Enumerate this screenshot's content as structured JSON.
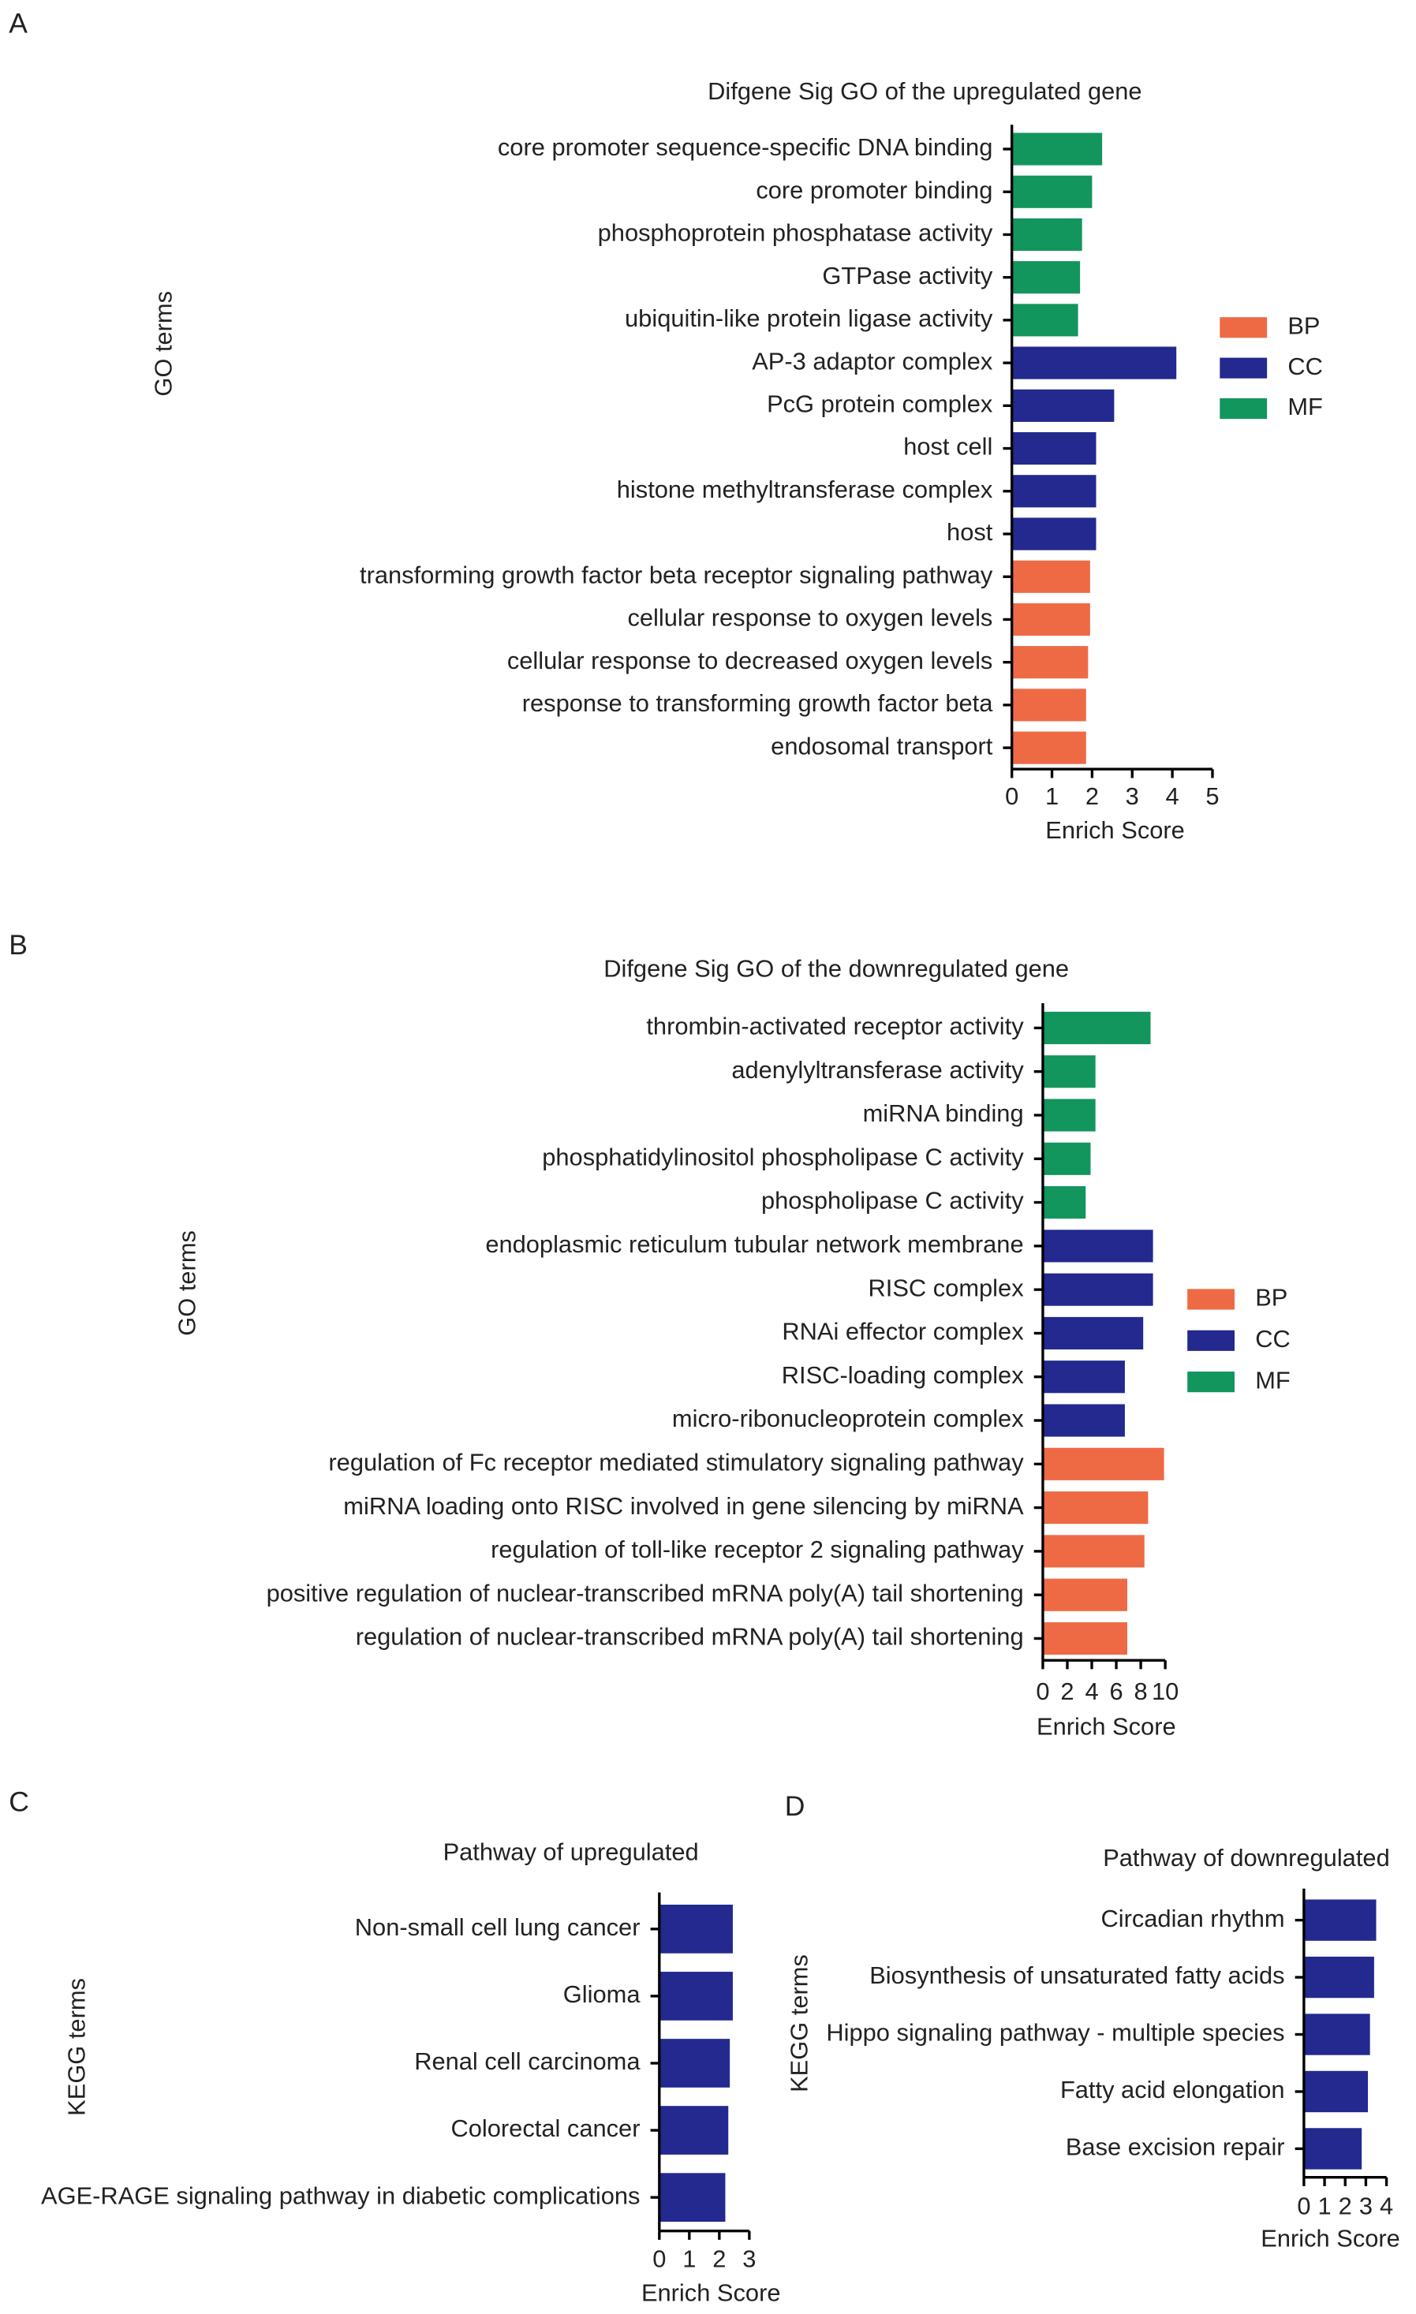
{
  "chart_data": [
    {
      "type": "barh",
      "panel": "A",
      "title": "Difgene Sig GO of the upregulated gene",
      "xlabel": "Enrich Score",
      "ylabel": "GO terms",
      "categories": [
        "core promoter sequence-specific DNA binding",
        "core promoter binding",
        "phosphoprotein phosphatase activity",
        "GTPase activity",
        "ubiquitin-like protein ligase activity",
        "AP-3 adaptor complex",
        "PcG protein complex",
        "host cell",
        "histone methyltransferase complex",
        "host",
        "transforming growth factor beta receptor signaling pathway",
        "cellular response to oxygen levels",
        "cellular response to decreased oxygen levels",
        "response to transforming growth factor beta",
        "endosomal transport"
      ],
      "series": [
        {
          "name": "BP",
          "color": "#ee6a45",
          "values": [
            null,
            null,
            null,
            null,
            null,
            null,
            null,
            null,
            null,
            null,
            1.95,
            1.95,
            1.9,
            1.85,
            1.85
          ]
        },
        {
          "name": "CC",
          "color": "#23298e",
          "values": [
            null,
            null,
            null,
            null,
            null,
            4.1,
            2.55,
            2.1,
            2.1,
            2.1,
            null,
            null,
            null,
            null,
            null
          ]
        },
        {
          "name": "MF",
          "color": "#13955e",
          "values": [
            2.25,
            2.0,
            1.75,
            1.7,
            1.65,
            null,
            null,
            null,
            null,
            null,
            null,
            null,
            null,
            null,
            null
          ]
        }
      ],
      "xlim": [
        0,
        5
      ],
      "xticks": [
        0,
        1,
        2,
        3,
        4,
        5
      ],
      "legend": "right"
    },
    {
      "type": "barh",
      "panel": "B",
      "title": "Difgene Sig GO of the downregulated gene",
      "xlabel": "Enrich Score",
      "ylabel": "GO terms",
      "categories": [
        "thrombin-activated receptor activity",
        "adenylyltransferase activity",
        "miRNA binding",
        "phosphatidylinositol phospholipase C activity",
        "phospholipase C activity",
        "endoplasmic reticulum tubular network membrane",
        "RISC complex",
        "RNAi effector complex",
        "RISC-loading complex",
        "micro-ribonucleoprotein complex",
        "regulation of Fc receptor mediated stimulatory signaling pathway",
        "miRNA loading onto RISC involved in gene silencing by miRNA",
        "regulation of toll-like receptor 2 signaling pathway",
        "positive regulation of nuclear-transcribed mRNA poly(A) tail shortening",
        "regulation of nuclear-transcribed mRNA poly(A) tail shortening"
      ],
      "series": [
        {
          "name": "BP",
          "color": "#ee6a45",
          "values": [
            null,
            null,
            null,
            null,
            null,
            null,
            null,
            null,
            null,
            null,
            9.9,
            8.6,
            8.3,
            6.9,
            6.9
          ]
        },
        {
          "name": "CC",
          "color": "#23298e",
          "values": [
            null,
            null,
            null,
            null,
            null,
            9.0,
            9.0,
            8.2,
            6.7,
            6.7,
            null,
            null,
            null,
            null,
            null
          ]
        },
        {
          "name": "MF",
          "color": "#13955e",
          "values": [
            8.8,
            4.3,
            4.3,
            3.9,
            3.5,
            null,
            null,
            null,
            null,
            null,
            null,
            null,
            null,
            null,
            null
          ]
        }
      ],
      "xlim": [
        0,
        10
      ],
      "xticks": [
        0,
        2,
        4,
        6,
        8,
        10
      ],
      "legend": "right"
    },
    {
      "type": "barh",
      "panel": "C",
      "title": "Pathway of upregulated",
      "xlabel": "Enrich Score",
      "ylabel": "KEGG terms",
      "categories": [
        "Non-small cell lung cancer",
        "Glioma",
        "Renal cell carcinoma",
        "Colorectal cancer",
        "AGE-RAGE signaling pathway in diabetic complications"
      ],
      "values": [
        2.45,
        2.45,
        2.35,
        2.3,
        2.2
      ],
      "color": "#23298e",
      "xlim": [
        0,
        3
      ],
      "xticks": [
        0,
        1,
        2,
        3
      ]
    },
    {
      "type": "barh",
      "panel": "D",
      "title": "Pathway of downregulated",
      "xlabel": "Enrich Score",
      "ylabel": "KEGG terms",
      "categories": [
        "Circadian rhythm",
        "Biosynthesis of unsaturated fatty acids",
        "Hippo signaling pathway - multiple species",
        "Fatty acid elongation",
        "Base excision repair"
      ],
      "values": [
        3.5,
        3.4,
        3.2,
        3.1,
        2.8
      ],
      "color": "#23298e",
      "xlim": [
        0,
        4
      ],
      "xticks": [
        0,
        1,
        2,
        3,
        4
      ]
    }
  ]
}
